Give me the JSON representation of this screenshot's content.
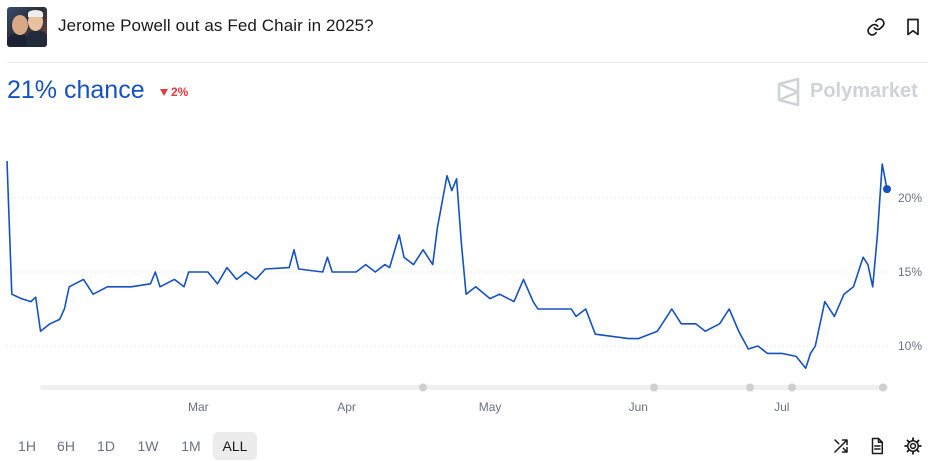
{
  "header": {
    "title": "Jerome Powell out as Fed Chair in 2025?"
  },
  "summary": {
    "chance_label": "21% chance",
    "change_label": "2%"
  },
  "brand": {
    "name": "Polymarket"
  },
  "timeframes": [
    {
      "label": "1H",
      "active": false
    },
    {
      "label": "6H",
      "active": false
    },
    {
      "label": "1D",
      "active": false
    },
    {
      "label": "1W",
      "active": false
    },
    {
      "label": "1M",
      "active": false
    },
    {
      "label": "ALL",
      "active": true
    }
  ],
  "icons": {
    "link": "link-icon",
    "bookmark": "bookmark-icon",
    "shuffle": "shuffle-icon",
    "document": "document-icon",
    "settings": "gear-icon"
  },
  "colors": {
    "line": "#1552c0",
    "accent": "#1552c0",
    "down": "#e23b3b"
  },
  "chart_data": {
    "type": "line",
    "x_tick_labels": [
      "Mar",
      "Apr",
      "May",
      "Jun",
      "Jul"
    ],
    "y_tick_labels": [
      "10%",
      "15%",
      "20%"
    ],
    "ylim": [
      7,
      24
    ],
    "y_ticks": [
      10,
      15,
      20
    ],
    "grid": "horizontal-dotted",
    "x_range": [
      "2025-01-20",
      "2025-07-23"
    ],
    "x_ticks": [
      "2025-03-01",
      "2025-04-01",
      "2025-05-01",
      "2025-06-01",
      "2025-07-01"
    ],
    "series": [
      {
        "points": [
          [
            "2025-01-20",
            22.5
          ],
          [
            "2025-01-21",
            13.5
          ],
          [
            "2025-01-23",
            13.2
          ],
          [
            "2025-01-25",
            13.0
          ],
          [
            "2025-01-26",
            13.3
          ],
          [
            "2025-01-27",
            11.0
          ],
          [
            "2025-01-29",
            11.5
          ],
          [
            "2025-01-31",
            11.8
          ],
          [
            "2025-02-01",
            12.5
          ],
          [
            "2025-02-02",
            14.0
          ],
          [
            "2025-02-05",
            14.5
          ],
          [
            "2025-02-07",
            13.5
          ],
          [
            "2025-02-10",
            14.0
          ],
          [
            "2025-02-15",
            14.0
          ],
          [
            "2025-02-19",
            14.2
          ],
          [
            "2025-02-20",
            15.0
          ],
          [
            "2025-02-21",
            14.0
          ],
          [
            "2025-02-24",
            14.5
          ],
          [
            "2025-02-26",
            14.0
          ],
          [
            "2025-02-27",
            15.0
          ],
          [
            "2025-03-03",
            15.0
          ],
          [
            "2025-03-05",
            14.2
          ],
          [
            "2025-03-07",
            15.3
          ],
          [
            "2025-03-09",
            14.5
          ],
          [
            "2025-03-11",
            15.0
          ],
          [
            "2025-03-13",
            14.5
          ],
          [
            "2025-03-15",
            15.2
          ],
          [
            "2025-03-20",
            15.3
          ],
          [
            "2025-03-21",
            16.5
          ],
          [
            "2025-03-22",
            15.2
          ],
          [
            "2025-03-27",
            15.0
          ],
          [
            "2025-03-28",
            16.0
          ],
          [
            "2025-03-29",
            15.0
          ],
          [
            "2025-04-03",
            15.0
          ],
          [
            "2025-04-05",
            15.5
          ],
          [
            "2025-04-07",
            15.0
          ],
          [
            "2025-04-09",
            15.5
          ],
          [
            "2025-04-10",
            15.3
          ],
          [
            "2025-04-12",
            17.5
          ],
          [
            "2025-04-13",
            16.0
          ],
          [
            "2025-04-15",
            15.5
          ],
          [
            "2025-04-17",
            16.5
          ],
          [
            "2025-04-19",
            15.5
          ],
          [
            "2025-04-20",
            18.0
          ],
          [
            "2025-04-22",
            21.5
          ],
          [
            "2025-04-23",
            20.5
          ],
          [
            "2025-04-24",
            21.3
          ],
          [
            "2025-04-25",
            17.0
          ],
          [
            "2025-04-26",
            13.5
          ],
          [
            "2025-04-28",
            14.0
          ],
          [
            "2025-05-01",
            13.2
          ],
          [
            "2025-05-03",
            13.5
          ],
          [
            "2025-05-06",
            13.0
          ],
          [
            "2025-05-08",
            14.5
          ],
          [
            "2025-05-10",
            13.0
          ],
          [
            "2025-05-11",
            12.5
          ],
          [
            "2025-05-15",
            12.5
          ],
          [
            "2025-05-18",
            12.5
          ],
          [
            "2025-05-19",
            12.0
          ],
          [
            "2025-05-21",
            12.5
          ],
          [
            "2025-05-23",
            10.8
          ],
          [
            "2025-05-30",
            10.5
          ],
          [
            "2025-06-01",
            10.5
          ],
          [
            "2025-06-05",
            11.0
          ],
          [
            "2025-06-06",
            11.5
          ],
          [
            "2025-06-08",
            12.5
          ],
          [
            "2025-06-10",
            11.5
          ],
          [
            "2025-06-13",
            11.5
          ],
          [
            "2025-06-15",
            11.0
          ],
          [
            "2025-06-18",
            11.5
          ],
          [
            "2025-06-20",
            12.5
          ],
          [
            "2025-06-22",
            11.0
          ],
          [
            "2025-06-24",
            9.8
          ],
          [
            "2025-06-26",
            10.0
          ],
          [
            "2025-06-28",
            9.5
          ],
          [
            "2025-07-01",
            9.5
          ],
          [
            "2025-07-04",
            9.3
          ],
          [
            "2025-07-06",
            8.5
          ],
          [
            "2025-07-07",
            9.5
          ],
          [
            "2025-07-08",
            10.0
          ],
          [
            "2025-07-10",
            13.0
          ],
          [
            "2025-07-12",
            12.0
          ],
          [
            "2025-07-14",
            13.5
          ],
          [
            "2025-07-16",
            14.0
          ],
          [
            "2025-07-18",
            16.0
          ],
          [
            "2025-07-19",
            15.5
          ],
          [
            "2025-07-20",
            14.0
          ],
          [
            "2025-07-21",
            17.5
          ],
          [
            "2025-07-22",
            22.3
          ],
          [
            "2025-07-23",
            20.6
          ]
        ]
      }
    ],
    "last_value": 20.6
  }
}
